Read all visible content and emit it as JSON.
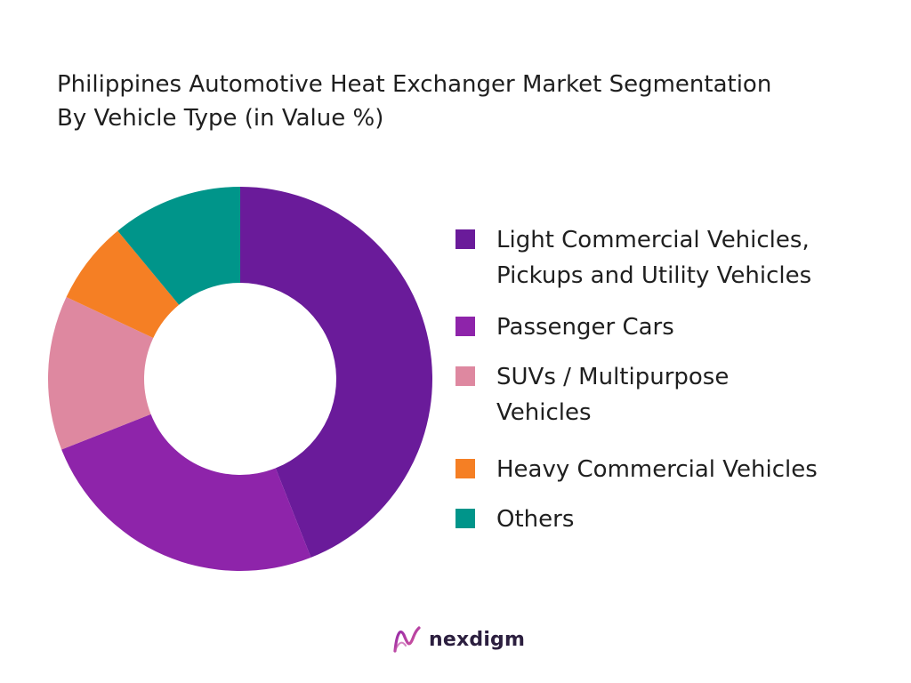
{
  "chart_data": {
    "type": "pie",
    "title_lines": [
      "Philippines Automotive Heat Exchanger Market Segmentation",
      "By Vehicle Type (in Value %)"
    ],
    "donut": true,
    "legend_position": "right",
    "slices": [
      {
        "label": "Light Commercial Vehicles,\nPickups and Utility Vehicles",
        "value": 44,
        "color": "#6a1b9a"
      },
      {
        "label": "Passenger Cars",
        "value": 25,
        "color": "#8e24aa"
      },
      {
        "label": "SUVs / Multipurpose\nVehicles",
        "value": 13,
        "color": "#de88a0"
      },
      {
        "label": "Heavy Commercial Vehicles",
        "value": 7,
        "color": "#f57f24"
      },
      {
        "label": "Others",
        "value": 11,
        "color": "#00958a"
      }
    ]
  },
  "brand": {
    "name": "nexdigm",
    "icon": "nexdigm-logo-icon"
  }
}
